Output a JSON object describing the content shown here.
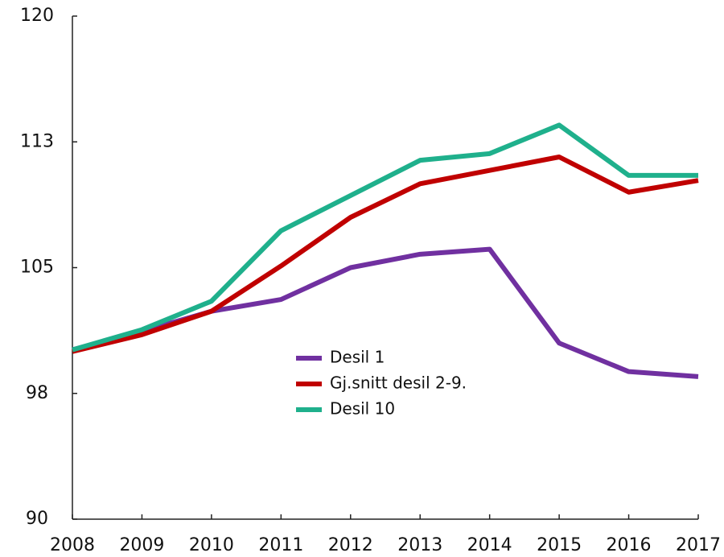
{
  "chart_data": {
    "type": "line",
    "x": [
      2008,
      2009,
      2010,
      2011,
      2012,
      2013,
      2014,
      2015,
      2016,
      2017
    ],
    "xlim": [
      2008,
      2017
    ],
    "ylim": [
      90,
      120
    ],
    "yticks": [
      90,
      {
        "value": 97.5,
        "label": "98"
      },
      105,
      {
        "value": 112.5,
        "label": "113"
      },
      120
    ],
    "legend": "center",
    "series": [
      {
        "name": "Desil 1",
        "color": "#7030a0",
        "values": [
          100.1,
          101.2,
          102.4,
          103.1,
          105.0,
          105.8,
          106.1,
          100.5,
          98.8,
          98.5
        ]
      },
      {
        "name": "Gj.snitt desil 2-9.",
        "color": "#c00000",
        "values": [
          100.0,
          101.0,
          102.4,
          105.1,
          108.0,
          110.0,
          110.8,
          111.6,
          109.5,
          110.2
        ]
      },
      {
        "name": "Desil 10",
        "color": "#1fb08c",
        "values": [
          100.1,
          101.3,
          103.0,
          107.2,
          109.3,
          111.4,
          111.8,
          113.5,
          110.5,
          110.5
        ]
      }
    ]
  }
}
